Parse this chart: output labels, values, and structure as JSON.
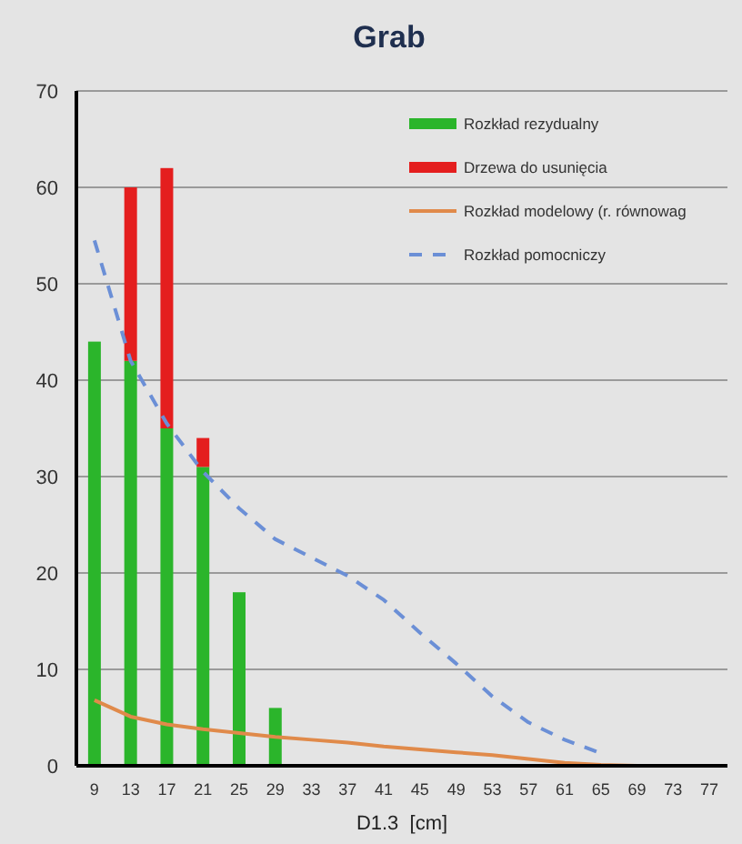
{
  "chart_data": {
    "type": "bar",
    "title": "Grab",
    "xlabel": "D1.3  [cm]",
    "stacked": true,
    "grid": "y",
    "legend": "top right",
    "categories": [
      "9",
      "13",
      "17",
      "21",
      "25",
      "29",
      "33",
      "37",
      "41",
      "45",
      "49",
      "53",
      "57",
      "61",
      "65",
      "69",
      "73",
      "77"
    ],
    "ylim": [
      0,
      70
    ],
    "yticks": [
      0,
      10,
      20,
      30,
      40,
      50,
      60,
      70
    ],
    "series": [
      {
        "name": "Rozkład rezydualny",
        "color": "#2bb52b",
        "values": [
          44,
          42,
          35,
          31,
          18,
          6,
          null,
          null,
          null,
          null,
          null,
          null,
          null,
          null,
          null,
          null,
          null,
          null
        ]
      },
      {
        "name": "Drzewa do usunięcia",
        "color": "#e41e1e",
        "values": [
          null,
          18,
          27,
          3,
          null,
          null,
          null,
          null,
          null,
          null,
          null,
          null,
          null,
          null,
          null,
          null,
          null,
          null
        ]
      },
      {
        "name": "Rozkład modelowy (r. równowag",
        "type": "line",
        "color": "#e08a4a",
        "line_style": "solid",
        "values": [
          6.8,
          5.1,
          4.3,
          3.8,
          3.4,
          3.0,
          2.7,
          2.4,
          2.0,
          1.7,
          1.4,
          1.1,
          0.7,
          0.3,
          0.1,
          0,
          0,
          0
        ]
      },
      {
        "name": "Rozkład pomocniczy",
        "type": "line",
        "color": "#6b8fd6",
        "line_style": "dashed",
        "values": [
          54.5,
          42,
          35.5,
          30.5,
          26.7,
          23.5,
          21.6,
          19.7,
          17.2,
          13.8,
          10.6,
          7.2,
          4.5,
          2.7,
          1.3,
          null,
          null,
          null
        ]
      }
    ]
  }
}
